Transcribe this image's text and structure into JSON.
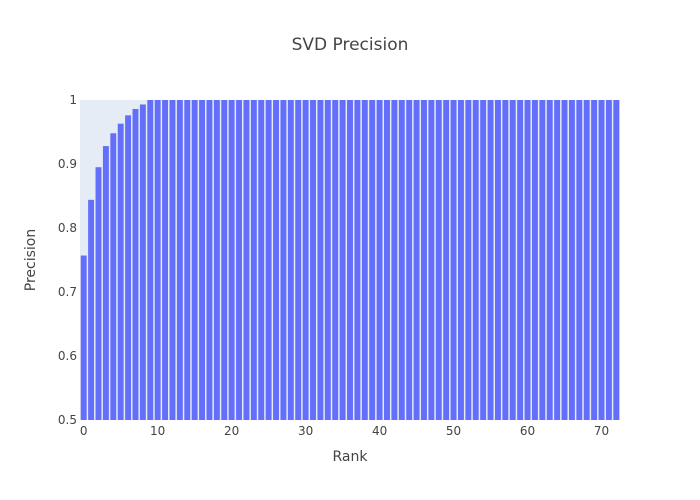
{
  "chart_data": {
    "type": "bar",
    "title": "SVD Precision",
    "xlabel": "Rank",
    "ylabel": "Precision",
    "xlim": [
      -0.5,
      72.5
    ],
    "ylim": [
      0.5,
      1.0
    ],
    "x_ticks": [
      0,
      10,
      20,
      30,
      40,
      50,
      60,
      70
    ],
    "y_ticks": [
      0.5,
      0.6,
      0.7,
      0.8,
      0.9,
      1
    ],
    "y_tick_labels": [
      "0.5",
      "0.6",
      "0.7",
      "0.8",
      "0.9",
      "1"
    ],
    "grid": false,
    "bar_color": "#636efa",
    "plot_bg_color": "#e5ecf6",
    "x": [
      0,
      1,
      2,
      3,
      4,
      5,
      6,
      7,
      8,
      9,
      10,
      11,
      12,
      13,
      14,
      15,
      16,
      17,
      18,
      19,
      20,
      21,
      22,
      23,
      24,
      25,
      26,
      27,
      28,
      29,
      30,
      31,
      32,
      33,
      34,
      35,
      36,
      37,
      38,
      39,
      40,
      41,
      42,
      43,
      44,
      45,
      46,
      47,
      48,
      49,
      50,
      51,
      52,
      53,
      54,
      55,
      56,
      57,
      58,
      59,
      60,
      61,
      62,
      63,
      64,
      65,
      66,
      67,
      68,
      69,
      70,
      71,
      72
    ],
    "values": [
      0.757,
      0.844,
      0.895,
      0.928,
      0.948,
      0.963,
      0.976,
      0.986,
      0.993,
      1,
      1,
      1,
      1,
      1,
      1,
      1,
      1,
      1,
      1,
      1,
      1,
      1,
      1,
      1,
      1,
      1,
      1,
      1,
      1,
      1,
      1,
      1,
      1,
      1,
      1,
      1,
      1,
      1,
      1,
      1,
      1,
      1,
      1,
      1,
      1,
      1,
      1,
      1,
      1,
      1,
      1,
      1,
      1,
      1,
      1,
      1,
      1,
      1,
      1,
      1,
      1,
      1,
      1,
      1,
      1,
      1,
      1,
      1,
      1,
      1,
      1,
      1,
      1
    ]
  }
}
